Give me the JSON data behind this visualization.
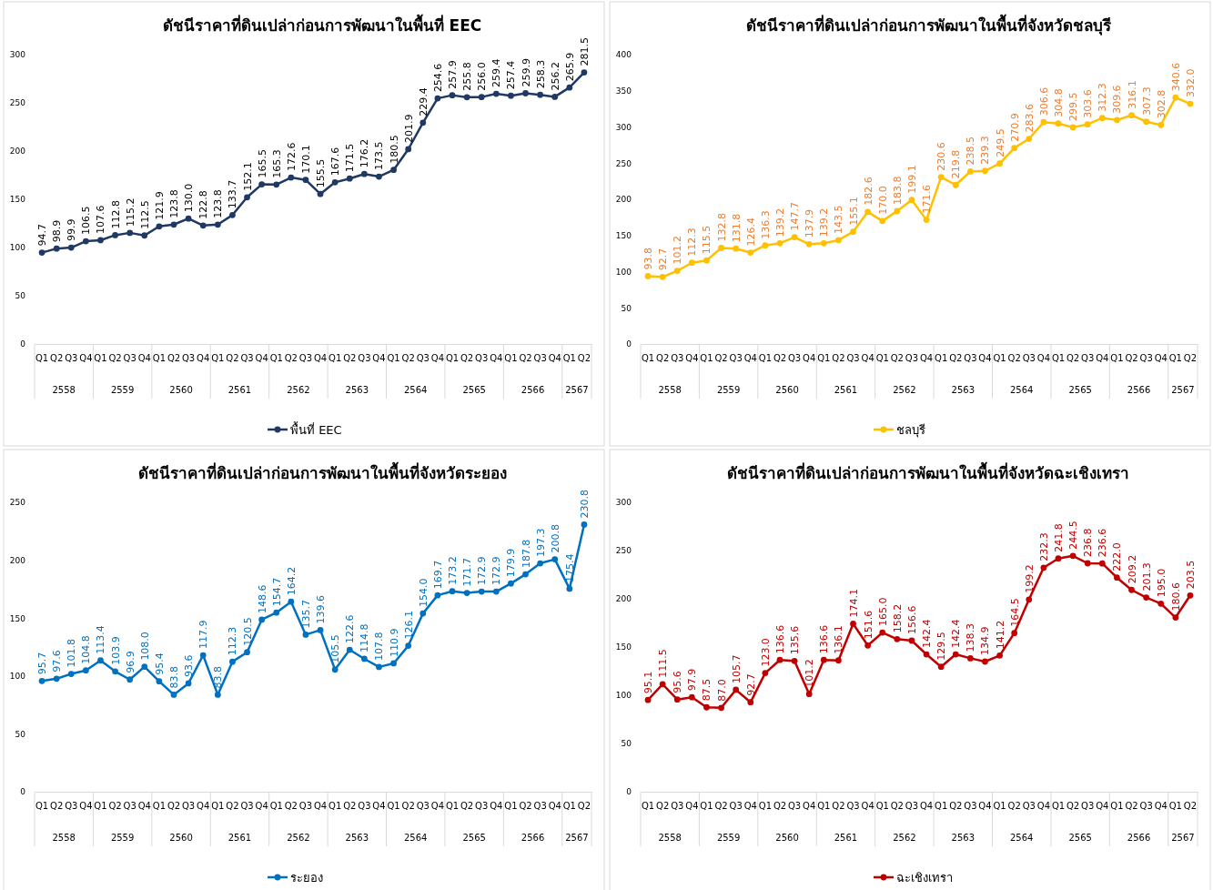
{
  "chart_data": [
    {
      "type": "line",
      "title": "ดัชนีราคาที่ดินเปล่าก่อนการพัฒนาในพื้นที่ EEC",
      "categories": [
        "Q1",
        "Q2",
        "Q3",
        "Q4",
        "Q1",
        "Q2",
        "Q3",
        "Q4",
        "Q1",
        "Q2",
        "Q3",
        "Q4",
        "Q1",
        "Q2",
        "Q3",
        "Q4",
        "Q1",
        "Q2",
        "Q3",
        "Q4",
        "Q1",
        "Q2",
        "Q3",
        "Q4",
        "Q1",
        "Q2",
        "Q3",
        "Q4",
        "Q1",
        "Q2",
        "Q3",
        "Q4",
        "Q1",
        "Q2",
        "Q3",
        "Q4",
        "Q1",
        "Q2"
      ],
      "annotations": [
        "2558",
        "2559",
        "2560",
        "2561",
        "2562",
        "2563",
        "2564",
        "2565",
        "2566",
        "2567"
      ],
      "series": [
        {
          "name": "พื้นที่ EEC",
          "color": "#1f3864",
          "values": [
            94.7,
            98.9,
            99.9,
            106.5,
            107.6,
            112.8,
            115.2,
            112.5,
            121.9,
            123.8,
            130.0,
            122.8,
            123.8,
            133.7,
            152.1,
            165.5,
            165.3,
            172.6,
            170.1,
            155.5,
            167.6,
            171.5,
            176.2,
            173.5,
            180.5,
            201.9,
            229.4,
            254.6,
            257.9,
            255.8,
            256.0,
            259.4,
            257.4,
            259.9,
            258.3,
            256.2,
            265.9,
            281.5
          ],
          "value_labels": [
            "94.7",
            "98.9",
            "99.9",
            "106.5",
            "107.6",
            "112.8",
            "115.2",
            "112.5",
            "121.9",
            "123.8",
            "130.0",
            "122.8",
            "123.8",
            "133.7",
            "152.1",
            "165.5",
            "165.3",
            "172.6",
            "170.1",
            "155.5",
            "167.6",
            "171.5",
            "176.2",
            "173.5",
            "180.5",
            "201.9",
            "229.4",
            "254.6",
            "257.9",
            "255.8",
            "256.0",
            "259.4",
            "257.4",
            "259.9",
            "258.3",
            "256.2",
            "265.9",
            "281.5"
          ]
        }
      ],
      "ylim": [
        0,
        300
      ],
      "yticks": [
        0,
        50,
        100,
        150,
        200,
        250,
        300
      ],
      "grid": false,
      "legend": "bottom",
      "marker": "circle"
    },
    {
      "type": "line",
      "title": "ดัชนีราคาที่ดินเปล่าก่อนการพัฒนาในพื้นที่จังหวัดชลบุรี",
      "categories": [
        "Q1",
        "Q2",
        "Q3",
        "Q4",
        "Q1",
        "Q2",
        "Q3",
        "Q4",
        "Q1",
        "Q2",
        "Q3",
        "Q4",
        "Q1",
        "Q2",
        "Q3",
        "Q4",
        "Q1",
        "Q2",
        "Q3",
        "Q4",
        "Q1",
        "Q2",
        "Q3",
        "Q4",
        "Q1",
        "Q2",
        "Q3",
        "Q4",
        "Q1",
        "Q2",
        "Q3",
        "Q4",
        "Q1",
        "Q2",
        "Q3",
        "Q4",
        "Q1",
        "Q2"
      ],
      "annotations": [
        "2558",
        "2559",
        "2560",
        "2561",
        "2562",
        "2563",
        "2564",
        "2565",
        "2566",
        "2567"
      ],
      "series": [
        {
          "name": "ชลบุรี",
          "color": "#ffc000",
          "values": [
            93.8,
            92.7,
            101.2,
            112.3,
            115.5,
            132.8,
            131.8,
            126.4,
            136.3,
            139.2,
            147.7,
            137.9,
            139.2,
            143.5,
            155.1,
            182.6,
            170.0,
            183.8,
            199.1,
            171.6,
            230.6,
            219.8,
            238.5,
            239.3,
            249.5,
            270.9,
            283.6,
            306.6,
            304.8,
            299.5,
            303.6,
            312.3,
            309.6,
            316.1,
            307.3,
            302.8,
            340.6,
            332.0
          ],
          "value_labels": [
            "93.8",
            "92.7",
            "101.2",
            "112.3",
            "115.5",
            "132.8",
            "131.8",
            "126.4",
            "136.3",
            "139.2",
            "147.7",
            "137.9",
            "139.2",
            "143.5",
            "155.1",
            "182.6",
            "170.0",
            "183.8",
            "199.1",
            "171.6",
            "230.6",
            "219.8",
            "238.5",
            "239.3",
            "249.5",
            "270.9",
            "283.6",
            "306.6",
            "304.8",
            "299.5",
            "303.6",
            "312.3",
            "309.6",
            "316.1",
            "307.3",
            "302.8",
            "340.6",
            "332.0"
          ]
        }
      ],
      "ylim": [
        0,
        400
      ],
      "yticks": [
        0,
        50,
        100,
        150,
        200,
        250,
        300,
        350,
        400
      ],
      "grid": false,
      "legend": "bottom",
      "marker": "circle"
    },
    {
      "type": "line",
      "title": "ดัชนีราคาที่ดินเปล่าก่อนการพัฒนาในพื้นที่จังหวัดระยอง",
      "categories": [
        "Q1",
        "Q2",
        "Q3",
        "Q4",
        "Q1",
        "Q2",
        "Q3",
        "Q4",
        "Q1",
        "Q2",
        "Q3",
        "Q4",
        "Q1",
        "Q2",
        "Q3",
        "Q4",
        "Q1",
        "Q2",
        "Q3",
        "Q4",
        "Q1",
        "Q2",
        "Q3",
        "Q4",
        "Q1",
        "Q2",
        "Q3",
        "Q4",
        "Q1",
        "Q2",
        "Q3",
        "Q4",
        "Q1",
        "Q2",
        "Q3",
        "Q4",
        "Q1",
        "Q2"
      ],
      "annotations": [
        "2558",
        "2559",
        "2560",
        "2561",
        "2562",
        "2563",
        "2564",
        "2565",
        "2566",
        "2567"
      ],
      "series": [
        {
          "name": "ระยอง",
          "color": "#0070c0",
          "values": [
            95.7,
            97.6,
            101.8,
            104.8,
            113.4,
            103.9,
            96.9,
            108.0,
            95.4,
            83.8,
            93.6,
            117.9,
            83.8,
            112.3,
            120.5,
            148.6,
            154.7,
            164.2,
            135.7,
            139.6,
            105.5,
            122.6,
            114.8,
            107.8,
            110.9,
            126.1,
            154.0,
            169.7,
            173.2,
            171.7,
            172.9,
            172.9,
            179.9,
            187.8,
            197.3,
            200.8,
            175.4,
            230.8
          ],
          "value_labels": [
            "95.7",
            "97.6",
            "101.8",
            "104.8",
            "113.4",
            "103.9",
            "96.9",
            "108.0",
            "95.4",
            "83.8",
            "93.6",
            "117.9",
            "83.8",
            "112.3",
            "120.5",
            "148.6",
            "154.7",
            "164.2",
            "135.7",
            "139.6",
            "105.5",
            "122.6",
            "114.8",
            "107.8",
            "110.9",
            "126.1",
            "154.0",
            "169.7",
            "173.2",
            "171.7",
            "172.9",
            "172.9",
            "179.9",
            "187.8",
            "197.3",
            "200.8",
            "175.4",
            "230.8"
          ]
        }
      ],
      "ylim": [
        0,
        250
      ],
      "yticks": [
        0,
        50,
        100,
        150,
        200,
        250
      ],
      "grid": false,
      "legend": "bottom",
      "marker": "circle"
    },
    {
      "type": "line",
      "title": "ดัชนีราคาที่ดินเปล่าก่อนการพัฒนาในพื้นที่จังหวัดฉะเชิงเทรา",
      "categories": [
        "Q1",
        "Q2",
        "Q3",
        "Q4",
        "Q1",
        "Q2",
        "Q3",
        "Q4",
        "Q1",
        "Q2",
        "Q3",
        "Q4",
        "Q1",
        "Q2",
        "Q3",
        "Q4",
        "Q1",
        "Q2",
        "Q3",
        "Q4",
        "Q1",
        "Q2",
        "Q3",
        "Q4",
        "Q1",
        "Q2",
        "Q3",
        "Q4",
        "Q1",
        "Q2",
        "Q3",
        "Q4",
        "Q1",
        "Q2",
        "Q3",
        "Q4",
        "Q1",
        "Q2"
      ],
      "annotations": [
        "2558",
        "2559",
        "2560",
        "2561",
        "2562",
        "2563",
        "2564",
        "2565",
        "2566",
        "2567"
      ],
      "series": [
        {
          "name": "ฉะเชิงเทรา",
          "color": "#c00000",
          "values": [
            95.1,
            111.5,
            95.6,
            97.9,
            87.5,
            87.0,
            105.7,
            92.7,
            123.0,
            136.6,
            135.6,
            101.2,
            136.6,
            136.1,
            174.1,
            151.6,
            165.0,
            158.2,
            156.6,
            142.4,
            129.5,
            142.4,
            138.3,
            134.9,
            141.2,
            164.5,
            199.2,
            232.3,
            241.8,
            244.5,
            236.8,
            236.6,
            222.0,
            209.2,
            201.3,
            195.0,
            180.6,
            203.5
          ],
          "value_labels": [
            "95.1",
            "111.5",
            "95.6",
            "97.9",
            "87.5",
            "87.0",
            "105.7",
            "92.7",
            "123.0",
            "136.6",
            "135.6",
            "101.2",
            "136.6",
            "136.1",
            "174.1",
            "151.6",
            "165.0",
            "158.2",
            "156.6",
            "142.4",
            "129.5",
            "142.4",
            "138.3",
            "134.9",
            "141.2",
            "164.5",
            "199.2",
            "232.3",
            "241.8",
            "244.5",
            "236.8",
            "236.6",
            "222.0",
            "209.2",
            "201.3",
            "195.0",
            "180.6",
            "203.5"
          ]
        }
      ],
      "ylim": [
        0,
        300
      ],
      "yticks": [
        0,
        50,
        100,
        150,
        200,
        250,
        300
      ],
      "grid": false,
      "legend": "bottom",
      "marker": "circle"
    }
  ]
}
